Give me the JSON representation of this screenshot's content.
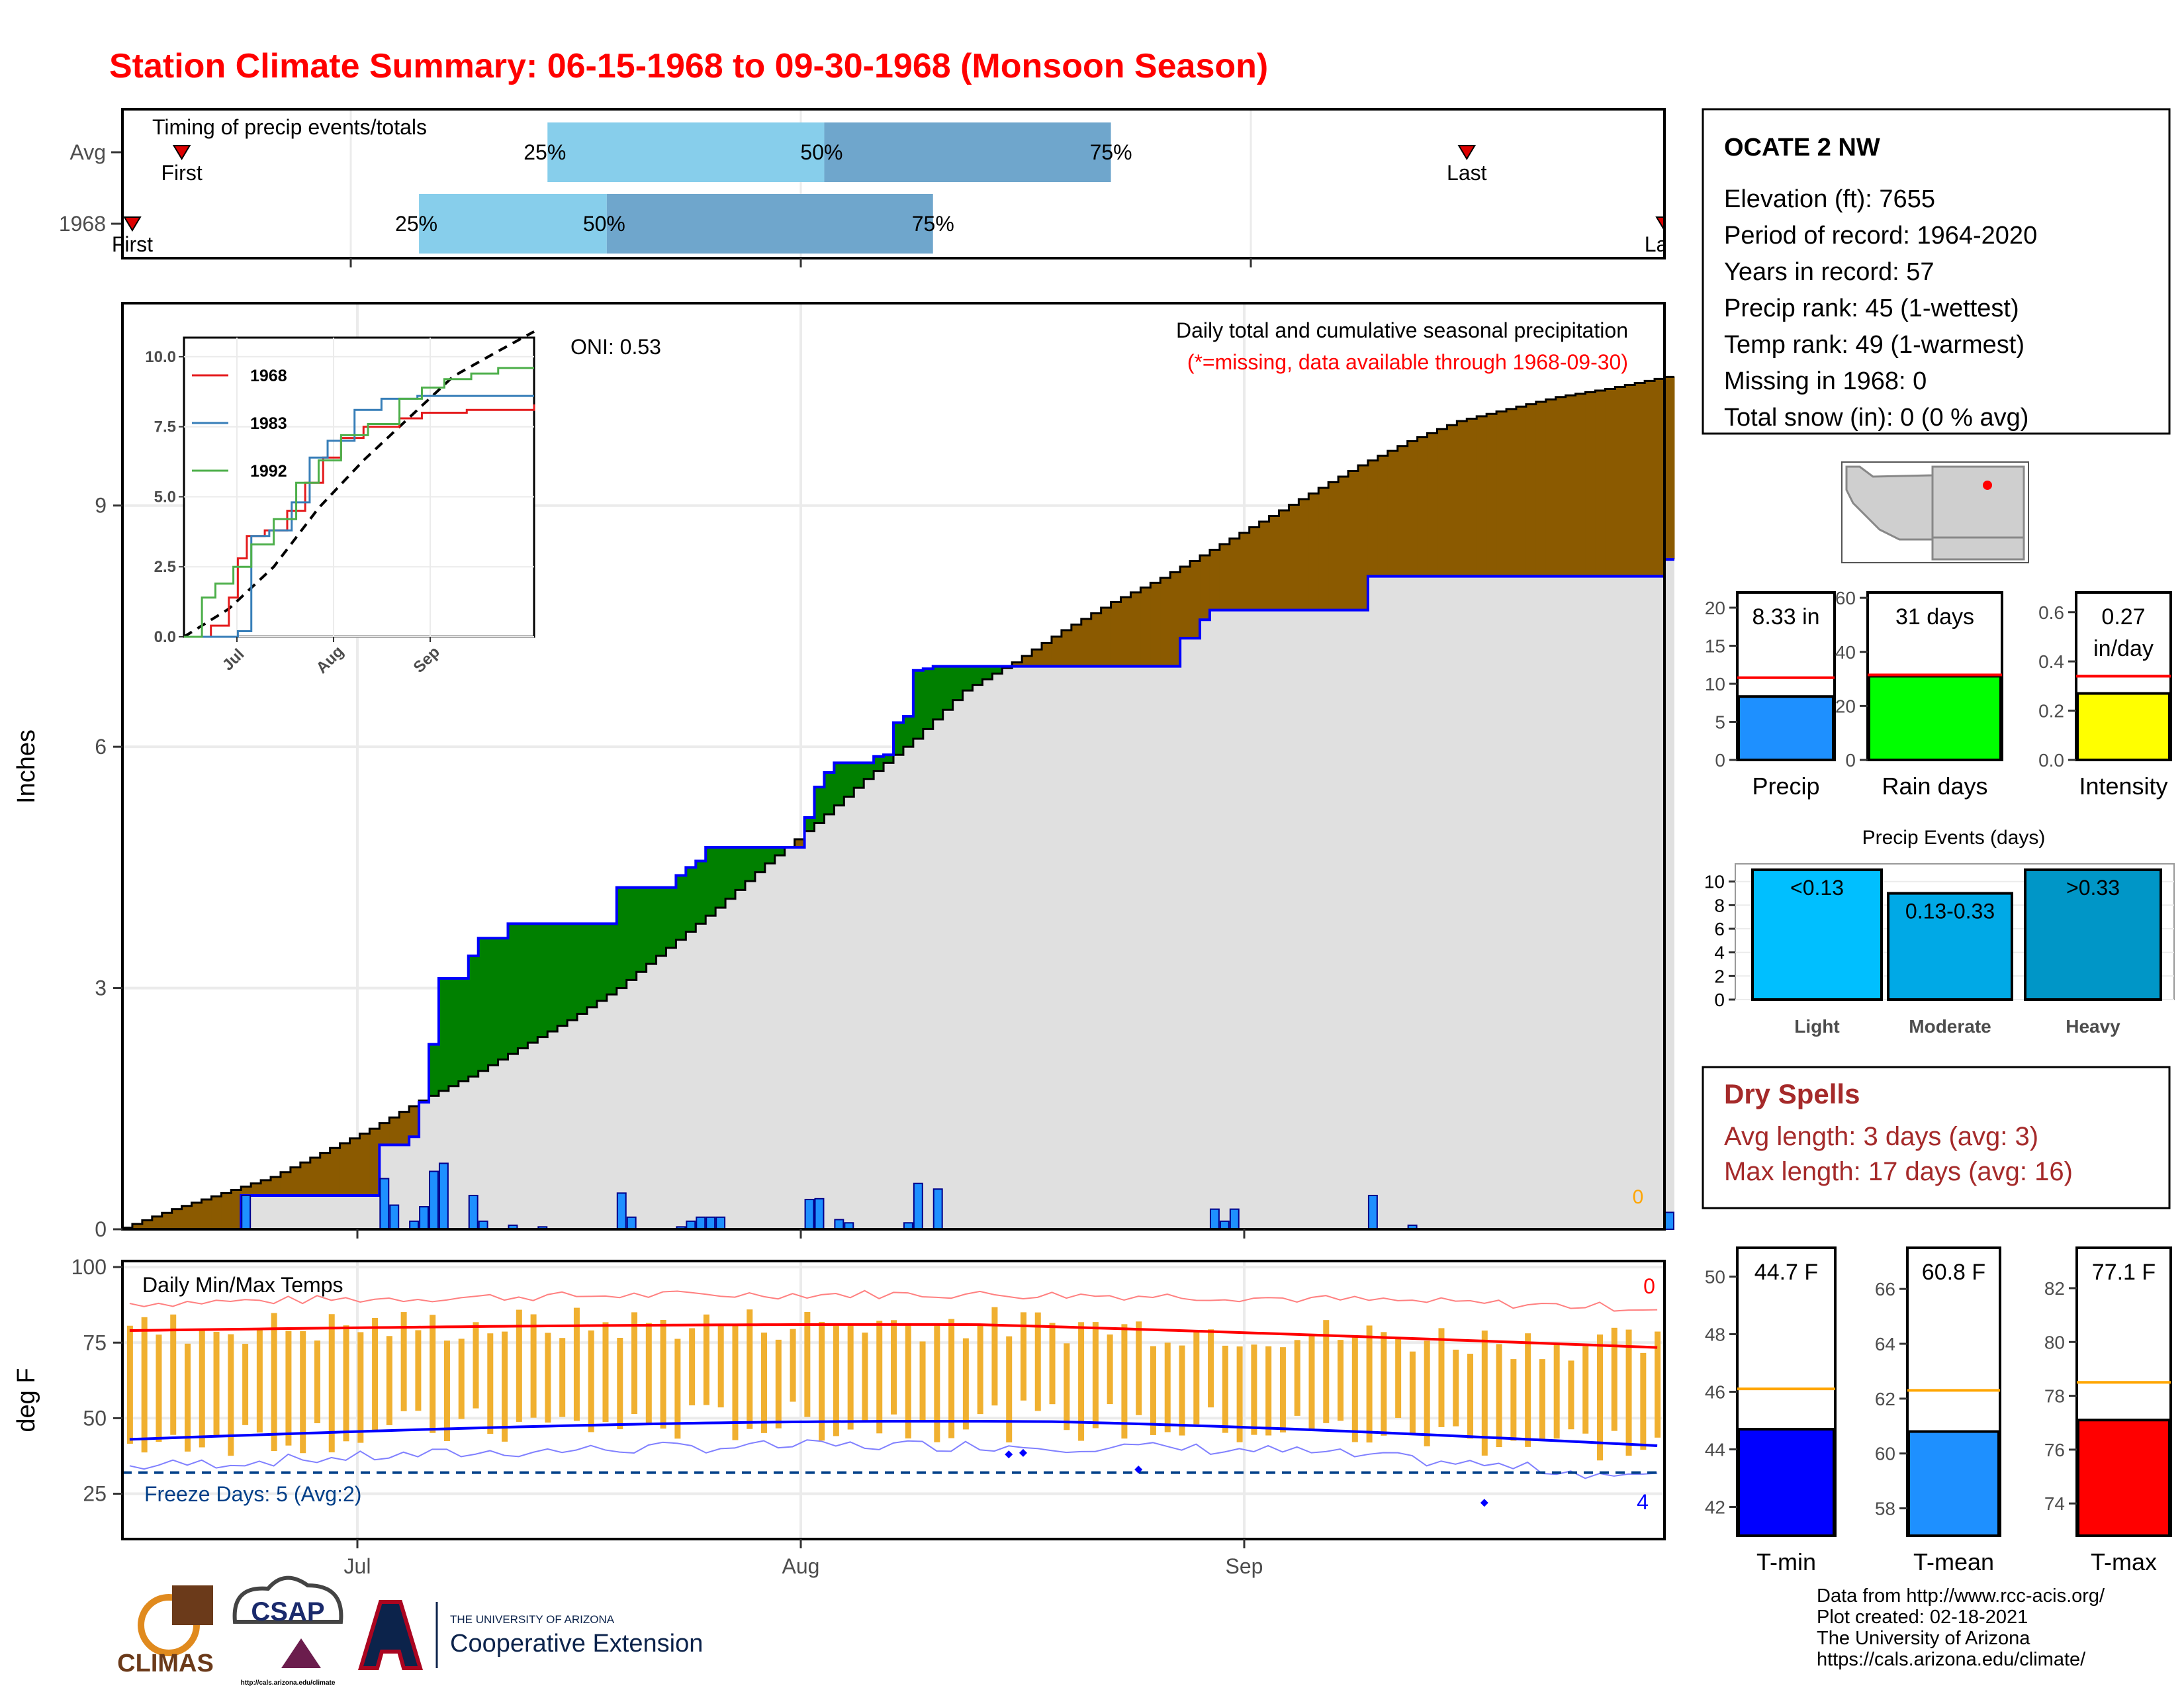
{
  "title": "Station Climate Summary: 06-15-1968 to 09-30-1968 (Monsoon Season)",
  "colors": {
    "title": "#ff0000",
    "excess": "#8b5a00",
    "deficit": "#008000",
    "normal_fill": "#e0e0e0",
    "obs_line": "#0000ff",
    "precip_bar": "#1e90ff",
    "temp_bar": "#f0b030",
    "tmax": "#ff0000",
    "tmin": "#0000ff",
    "freeze": "#003f88",
    "light": "#00bfff",
    "moderate": "#00a9e6",
    "heavy": "#0096c7",
    "q_light": "#87ceeb",
    "q_dark": "#6fa6cc",
    "dry_text": "#a52a2a",
    "avg_line": "#ff0000",
    "temp_avg_line": "#ffa500"
  },
  "timing": {
    "label": "Timing of precip events/totals",
    "rows": [
      {
        "name": "Avg",
        "first": "First",
        "last": "Last",
        "p25": "25%",
        "p50": "50%",
        "p75": "75%",
        "first_day": 6,
        "last_day": 136,
        "p25_day": 43,
        "p50_day": 71,
        "p75_day": 100
      },
      {
        "name": "1968",
        "first": "First",
        "last": "Last",
        "p25": "25%",
        "p50": "50%",
        "p75": "75%",
        "first_day": 1,
        "last_day": 156,
        "p25_day": 30,
        "p50_day": 49,
        "p75_day": 82
      }
    ]
  },
  "main_chart": {
    "ylabel": "Inches",
    "title": "Daily total and cumulative seasonal precipitation",
    "subtitle": "(*=missing, data available through 1968-09-30)",
    "oni": "ONI: 0.53",
    "missing_count": "0",
    "x_ticks": [
      "Jul",
      "Aug",
      "Sep"
    ],
    "y_ticks": [
      0,
      3,
      6,
      9
    ],
    "ylim": [
      0,
      11.5
    ],
    "start_date": "1968-06-15",
    "end_date": "1968-09-30",
    "normal_cumulative": [
      [
        0,
        0.02
      ],
      [
        5,
        0.25
      ],
      [
        10,
        0.45
      ],
      [
        15,
        0.65
      ],
      [
        20,
        0.95
      ],
      [
        25,
        1.25
      ],
      [
        30,
        1.6
      ],
      [
        35,
        1.9
      ],
      [
        40,
        2.25
      ],
      [
        45,
        2.6
      ],
      [
        50,
        3.0
      ],
      [
        55,
        3.5
      ],
      [
        60,
        4.0
      ],
      [
        65,
        4.55
      ],
      [
        70,
        5.05
      ],
      [
        75,
        5.6
      ],
      [
        80,
        6.1
      ],
      [
        85,
        6.7
      ],
      [
        90,
        7.05
      ],
      [
        95,
        7.45
      ],
      [
        100,
        7.8
      ],
      [
        105,
        8.1
      ],
      [
        110,
        8.45
      ],
      [
        115,
        8.8
      ],
      [
        120,
        9.15
      ],
      [
        125,
        9.5
      ],
      [
        130,
        9.8
      ],
      [
        135,
        10.05
      ],
      [
        140,
        10.2
      ],
      [
        145,
        10.35
      ],
      [
        150,
        10.45
      ],
      [
        156,
        10.6
      ]
    ],
    "obs_cumulative": [
      [
        0,
        0.0
      ],
      [
        11,
        0.0
      ],
      [
        12,
        0.42
      ],
      [
        25,
        0.42
      ],
      [
        26,
        1.05
      ],
      [
        28,
        1.05
      ],
      [
        29,
        1.15
      ],
      [
        30,
        1.58
      ],
      [
        31,
        2.3
      ],
      [
        32,
        3.12
      ],
      [
        35,
        3.4
      ],
      [
        36,
        3.62
      ],
      [
        39,
        3.8
      ],
      [
        49,
        3.8
      ],
      [
        50,
        4.25
      ],
      [
        56,
        4.4
      ],
      [
        57,
        4.5
      ],
      [
        58,
        4.58
      ],
      [
        59,
        4.75
      ],
      [
        68,
        4.75
      ],
      [
        69,
        5.12
      ],
      [
        70,
        5.5
      ],
      [
        71,
        5.68
      ],
      [
        72,
        5.8
      ],
      [
        76,
        5.88
      ],
      [
        77,
        5.9
      ],
      [
        78,
        6.3
      ],
      [
        79,
        6.38
      ],
      [
        80,
        6.95
      ],
      [
        81,
        6.97
      ],
      [
        82,
        7.0
      ],
      [
        106,
        7.0
      ],
      [
        107,
        7.35
      ],
      [
        109,
        7.58
      ],
      [
        110,
        7.7
      ],
      [
        125,
        7.7
      ],
      [
        126,
        8.12
      ],
      [
        155,
        8.12
      ],
      [
        156,
        8.33
      ]
    ],
    "daily": [
      [
        12,
        0.42
      ],
      [
        26,
        0.63
      ],
      [
        27,
        0.3
      ],
      [
        29,
        0.1
      ],
      [
        30,
        0.28
      ],
      [
        31,
        0.72
      ],
      [
        32,
        0.82
      ],
      [
        35,
        0.42
      ],
      [
        36,
        0.1
      ],
      [
        39,
        0.05
      ],
      [
        42,
        0.03
      ],
      [
        50,
        0.45
      ],
      [
        51,
        0.15
      ],
      [
        56,
        0.03
      ],
      [
        57,
        0.1
      ],
      [
        58,
        0.15
      ],
      [
        59,
        0.15
      ],
      [
        60,
        0.15
      ],
      [
        69,
        0.37
      ],
      [
        70,
        0.38
      ],
      [
        72,
        0.12
      ],
      [
        73,
        0.08
      ],
      [
        79,
        0.08
      ],
      [
        80,
        0.57
      ],
      [
        82,
        0.5
      ],
      [
        110,
        0.25
      ],
      [
        111,
        0.1
      ],
      [
        112,
        0.25
      ],
      [
        126,
        0.42
      ],
      [
        130,
        0.05
      ],
      [
        156,
        0.21
      ]
    ]
  },
  "inset": {
    "y_ticks": [
      "0.0",
      "2.5",
      "5.0",
      "7.5",
      "10.0"
    ],
    "x_ticks": [
      "Jul",
      "Aug",
      "Sep"
    ],
    "legend": [
      {
        "name": "1968",
        "color": "#e41a1c"
      },
      {
        "name": "1983",
        "color": "#377eb8"
      },
      {
        "name": "1992",
        "color": "#4daf4a"
      }
    ],
    "series": [
      {
        "name": "1968",
        "color": "#e41a1c",
        "points": [
          [
            0,
            0
          ],
          [
            12,
            0.4
          ],
          [
            20,
            1.4
          ],
          [
            24,
            2.8
          ],
          [
            28,
            3.6
          ],
          [
            36,
            3.8
          ],
          [
            46,
            4.5
          ],
          [
            54,
            5.5
          ],
          [
            62,
            6.4
          ],
          [
            70,
            7.1
          ],
          [
            80,
            7.5
          ],
          [
            96,
            7.8
          ],
          [
            106,
            8.0
          ],
          [
            126,
            8.1
          ],
          [
            156,
            8.3
          ]
        ]
      },
      {
        "name": "1983",
        "color": "#377eb8",
        "points": [
          [
            0,
            0
          ],
          [
            24,
            0.2
          ],
          [
            30,
            3.6
          ],
          [
            38,
            3.8
          ],
          [
            48,
            4.8
          ],
          [
            56,
            6.4
          ],
          [
            64,
            7.0
          ],
          [
            76,
            8.1
          ],
          [
            88,
            8.5
          ],
          [
            104,
            8.6
          ],
          [
            130,
            8.6
          ],
          [
            156,
            8.6
          ]
        ]
      },
      {
        "name": "1992",
        "color": "#4daf4a",
        "points": [
          [
            0,
            0
          ],
          [
            8,
            1.4
          ],
          [
            14,
            1.9
          ],
          [
            22,
            2.5
          ],
          [
            30,
            3.3
          ],
          [
            40,
            4.2
          ],
          [
            50,
            5.5
          ],
          [
            60,
            6.3
          ],
          [
            70,
            7.2
          ],
          [
            82,
            7.6
          ],
          [
            96,
            8.5
          ],
          [
            106,
            8.9
          ],
          [
            116,
            9.2
          ],
          [
            128,
            9.4
          ],
          [
            140,
            9.6
          ],
          [
            156,
            9.6
          ]
        ]
      }
    ],
    "normal": [
      [
        0,
        0
      ],
      [
        20,
        1.0
      ],
      [
        40,
        2.5
      ],
      [
        60,
        4.6
      ],
      [
        80,
        6.3
      ],
      [
        100,
        7.8
      ],
      [
        120,
        9.3
      ],
      [
        140,
        10.2
      ],
      [
        156,
        10.9
      ]
    ]
  },
  "temp_chart": {
    "ylabel": "deg F",
    "title": "Daily Min/Max Temps",
    "freeze_label": "Freeze Days: 5 (Avg:2)",
    "missing_top": "0",
    "missing_bottom": "4",
    "y_ticks": [
      25,
      50,
      75,
      100
    ],
    "ylim": [
      10,
      102
    ],
    "freeze_threshold": 32,
    "x_ticks": [
      "Jul",
      "Aug",
      "Sep"
    ]
  },
  "station": {
    "name": "OCATE 2 NW",
    "lines": [
      "Elevation (ft): 7655",
      "Period of record: 1964-2020",
      "Years in record: 57",
      "Precip rank: 45 (1-wettest)",
      "Temp rank: 49 (1-warmest)",
      "Missing in 1968: 0",
      "Total snow (in): 0 (0 % avg)"
    ]
  },
  "summary_bars": [
    {
      "label": "Precip",
      "value_text": "8.33 in",
      "value": 8.33,
      "avg": 10.8,
      "ymax": 22,
      "ticks": [
        "0",
        "5",
        "10",
        "15",
        "20"
      ],
      "tickvals": [
        0,
        5,
        10,
        15,
        20
      ],
      "color": "#1e90ff"
    },
    {
      "label": "Rain days",
      "value_text": "31 days",
      "value": 31,
      "avg": 31.5,
      "ymax": 62,
      "ticks": [
        "0",
        "20",
        "40",
        "60"
      ],
      "tickvals": [
        0,
        20,
        40,
        60
      ],
      "color": "#00ff00"
    },
    {
      "label": "Intensity",
      "value_text": "0.27",
      "value_text2": "in/day",
      "value": 0.27,
      "avg": 0.34,
      "ymax": 0.68,
      "ticks": [
        "0.0",
        "0.2",
        "0.4",
        "0.6"
      ],
      "tickvals": [
        0,
        0.2,
        0.4,
        0.6
      ],
      "color": "#ffff00"
    }
  ],
  "events": {
    "title": "Precip Events (days)",
    "ticks": [
      "0",
      "2",
      "4",
      "6",
      "8",
      "10"
    ],
    "ymax": 11.5,
    "bars": [
      {
        "label": "Light",
        "range": "<0.13",
        "value": 11,
        "color": "#00bfff"
      },
      {
        "label": "Moderate",
        "range": "0.13-0.33",
        "value": 9,
        "color": "#00a9e6"
      },
      {
        "label": "Heavy",
        "range": ">0.33",
        "value": 11,
        "color": "#0096c7"
      }
    ]
  },
  "dry_spells": {
    "title": "Dry Spells",
    "avg": "Avg length: 3 days (avg: 3)",
    "max": "Max length: 17 days (avg: 16)"
  },
  "temp_summary": [
    {
      "label": "T-min",
      "value_text": "44.7 F",
      "value": 44.7,
      "avg": 46.1,
      "ymin": 41,
      "ymax": 51,
      "ticks": [
        "42",
        "44",
        "46",
        "48",
        "50"
      ],
      "tickvals": [
        42,
        44,
        46,
        48,
        50
      ],
      "color": "#0000ff"
    },
    {
      "label": "T-mean",
      "value_text": "60.8 F",
      "value": 60.8,
      "avg": 62.3,
      "ymin": 57,
      "ymax": 67.5,
      "ticks": [
        "58",
        "60",
        "62",
        "64",
        "66"
      ],
      "tickvals": [
        58,
        60,
        62,
        64,
        66
      ],
      "color": "#1e90ff"
    },
    {
      "label": "T-max",
      "value_text": "77.1 F",
      "value": 77.1,
      "avg": 78.5,
      "ymin": 72.8,
      "ymax": 83.5,
      "ticks": [
        "74",
        "76",
        "78",
        "80",
        "82"
      ],
      "tickvals": [
        74,
        76,
        78,
        80,
        82
      ],
      "color": "#ff0000"
    }
  ],
  "credits": [
    "Data from http://www.rcc-acis.org/",
    "Plot created: 02-18-2021",
    "The University of Arizona",
    "https://cals.arizona.edu/climate/"
  ],
  "logos": {
    "climas": "CLIMAS",
    "csap": "CSAP",
    "csap_url": "http://cals.arizona.edu/climate",
    "ua_line1": "THE UNIVERSITY OF ARIZONA",
    "ua_line2": "Cooperative Extension"
  }
}
